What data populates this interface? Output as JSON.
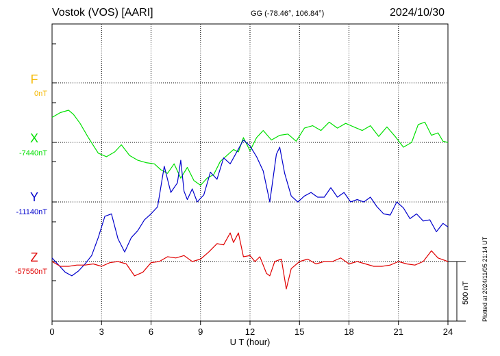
{
  "header": {
    "station": "Vostok (VOS)  [AARI]",
    "coords": "GG (-78.46°, 106.84°)",
    "date": "2024/10/30"
  },
  "footer": {
    "plotted": "Plotted at 2024/11/05 21:14 UT"
  },
  "chart_data": {
    "type": "line",
    "xlabel": "U T (hour)",
    "xlim": [
      0,
      24
    ],
    "xticks": [
      "0",
      "3",
      "6",
      "9",
      "12",
      "15",
      "18",
      "21",
      "24"
    ],
    "scale_bar": "500 nT",
    "colors": {
      "F": "#f5b800",
      "X": "#00e000",
      "Y": "#0000cc",
      "Z": "#e00000"
    },
    "series": [
      {
        "name": "F",
        "baseline": "0nT",
        "x": [],
        "y": []
      },
      {
        "name": "X",
        "baseline": "-7440nT",
        "x": [
          0,
          0.5,
          1.0,
          1.3,
          1.7,
          2.2,
          2.8,
          3.3,
          3.8,
          4.2,
          4.7,
          5.2,
          5.7,
          6.2,
          6.6,
          7.0,
          7.4,
          7.8,
          8.2,
          8.6,
          9.0,
          9.4,
          9.8,
          10.2,
          10.6,
          11.0,
          11.3,
          11.6,
          12.0,
          12.4,
          12.8,
          13.3,
          13.8,
          14.3,
          14.8,
          15.3,
          15.8,
          16.3,
          16.8,
          17.3,
          17.8,
          18.3,
          18.8,
          19.3,
          19.8,
          20.3,
          20.8,
          21.3,
          21.8,
          22.2,
          22.6,
          23.0,
          23.4,
          23.7,
          24.0
        ],
        "y": [
          210,
          250,
          270,
          235,
          160,
          40,
          -90,
          -120,
          -80,
          -20,
          -110,
          -150,
          -170,
          -180,
          -230,
          -260,
          -180,
          -300,
          -210,
          -320,
          -360,
          -300,
          -270,
          -160,
          -110,
          -60,
          -80,
          40,
          -70,
          40,
          100,
          20,
          60,
          70,
          10,
          120,
          140,
          100,
          170,
          120,
          160,
          130,
          100,
          140,
          50,
          130,
          50,
          -40,
          0,
          150,
          170,
          60,
          80,
          10,
          0
        ]
      },
      {
        "name": "Y",
        "baseline": "-11140nT",
        "x": [
          0,
          0.4,
          0.8,
          1.2,
          1.6,
          2.0,
          2.4,
          2.8,
          3.2,
          3.6,
          4.0,
          4.4,
          4.8,
          5.2,
          5.6,
          6.0,
          6.4,
          6.8,
          7.2,
          7.6,
          7.8,
          8.0,
          8.2,
          8.5,
          8.8,
          9.2,
          9.6,
          10.0,
          10.4,
          10.8,
          11.2,
          11.6,
          12.0,
          12.4,
          12.8,
          13.2,
          13.6,
          13.8,
          14.1,
          14.5,
          14.9,
          15.3,
          15.7,
          16.1,
          16.5,
          16.9,
          17.3,
          17.7,
          18.1,
          18.5,
          18.9,
          19.3,
          19.7,
          20.1,
          20.5,
          20.9,
          21.3,
          21.7,
          22.1,
          22.5,
          22.9,
          23.3,
          23.7,
          24.0
        ],
        "y": [
          -470,
          -530,
          -590,
          -620,
          -580,
          -520,
          -450,
          -300,
          -120,
          -100,
          -310,
          -420,
          -300,
          -240,
          -150,
          -100,
          -40,
          300,
          80,
          160,
          350,
          90,
          20,
          110,
          0,
          60,
          250,
          190,
          370,
          320,
          420,
          520,
          470,
          380,
          260,
          0,
          400,
          460,
          240,
          50,
          0,
          50,
          80,
          40,
          40,
          120,
          40,
          80,
          0,
          20,
          0,
          40,
          -40,
          -100,
          -110,
          0,
          -50,
          -140,
          -100,
          -160,
          -150,
          -250,
          -180,
          -210
        ]
      },
      {
        "name": "Z",
        "baseline": "-57550nT",
        "x": [
          0,
          0.5,
          1.0,
          1.5,
          2.0,
          2.5,
          3.0,
          3.5,
          4.0,
          4.5,
          5.0,
          5.5,
          6.0,
          6.5,
          7.0,
          7.5,
          8.0,
          8.5,
          9.0,
          9.5,
          10.0,
          10.4,
          10.8,
          11.0,
          11.3,
          11.6,
          12.0,
          12.3,
          12.6,
          13.0,
          13.2,
          13.5,
          13.9,
          14.2,
          14.5,
          15.0,
          15.5,
          16.0,
          16.5,
          17.0,
          17.5,
          18.0,
          18.5,
          19.0,
          19.5,
          20.0,
          20.5,
          21.0,
          21.5,
          22.0,
          22.5,
          23.0,
          23.4,
          24.0
        ],
        "y": [
          0,
          -40,
          -40,
          -30,
          -30,
          -20,
          -40,
          -10,
          0,
          -20,
          -120,
          -90,
          -10,
          0,
          40,
          30,
          50,
          0,
          20,
          80,
          150,
          140,
          240,
          160,
          240,
          40,
          50,
          0,
          40,
          -100,
          -120,
          0,
          20,
          -230,
          -60,
          0,
          20,
          -20,
          0,
          0,
          30,
          -20,
          0,
          -20,
          -40,
          -40,
          -30,
          0,
          -20,
          -30,
          0,
          90,
          30,
          0
        ]
      }
    ]
  }
}
